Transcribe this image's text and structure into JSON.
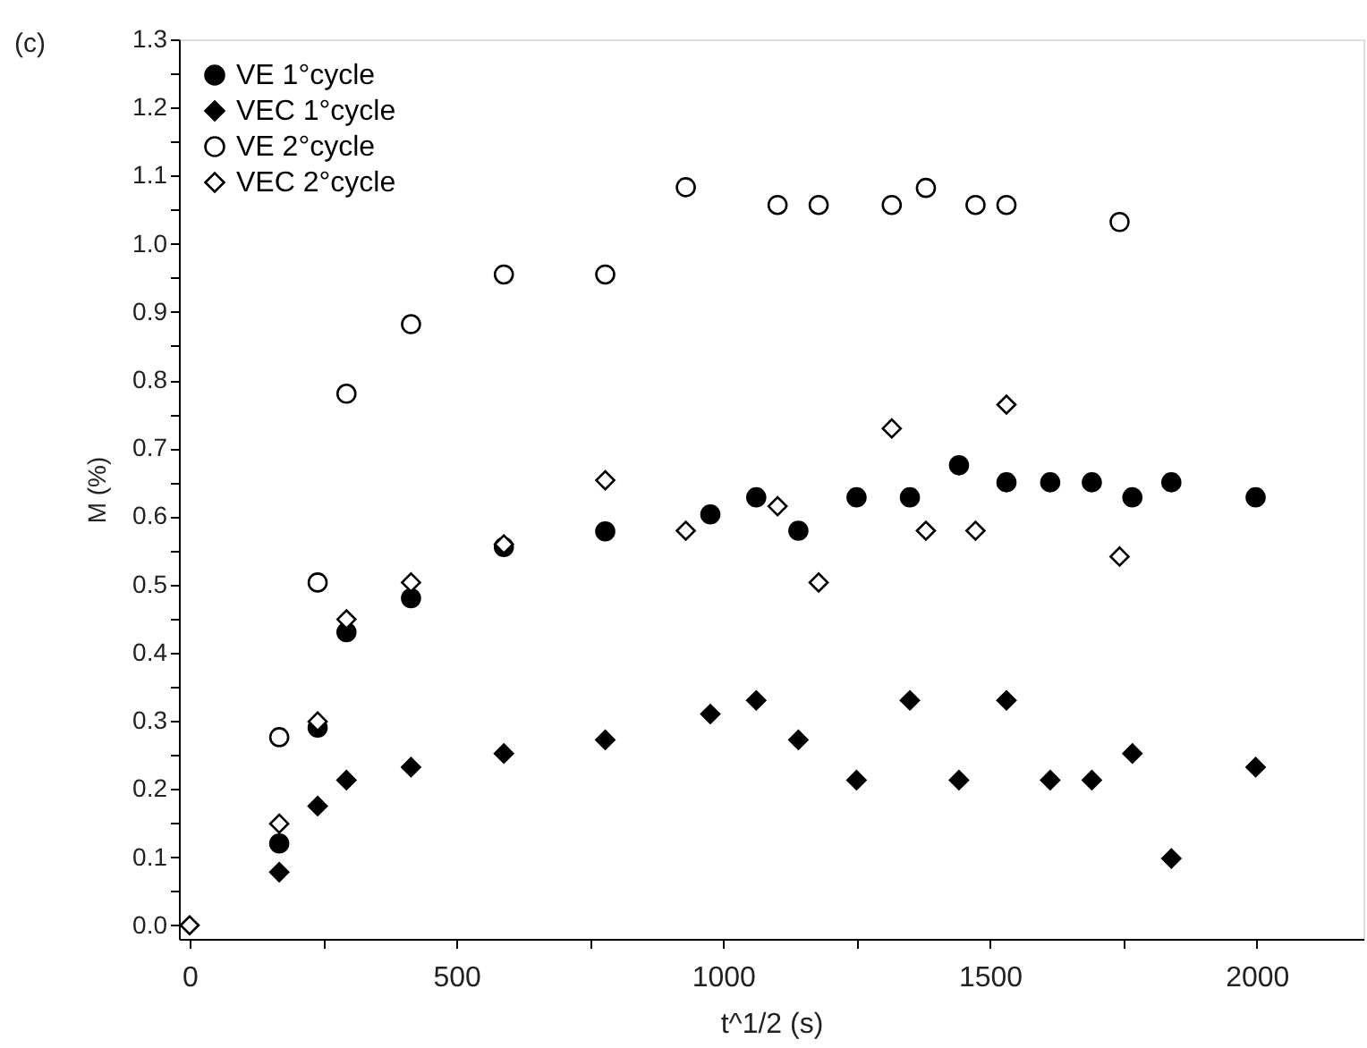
{
  "chart_data": {
    "type": "scatter",
    "xlabel": "t^1/2 (s)",
    "ylabel": "M (%)",
    "annotations": [
      "(c)"
    ],
    "xlim": [
      -20,
      2200
    ],
    "ylim": [
      -0.02,
      1.3
    ],
    "xticks": [
      0,
      {
        "value": 250,
        "label": null
      },
      500,
      {
        "value": 750,
        "label": null
      },
      1000,
      {
        "value": 1250,
        "label": null
      },
      1500,
      {
        "value": 1750,
        "label": null
      },
      2000
    ],
    "yticks": [
      {
        "value": 0,
        "label": "0.0"
      },
      {
        "value": 0.05,
        "label": null
      },
      0.1,
      {
        "value": 0.15,
        "label": null
      },
      0.2,
      {
        "value": 0.25,
        "label": null
      },
      0.3,
      {
        "value": 0.35,
        "label": null
      },
      0.4,
      {
        "value": 0.45,
        "label": null
      },
      0.5,
      {
        "value": 0.55,
        "label": null
      },
      0.6,
      {
        "value": 0.65,
        "label": null
      },
      0.7,
      {
        "value": 0.75,
        "label": null
      },
      0.8,
      {
        "value": 0.85,
        "label": null
      },
      0.9,
      {
        "value": 0.95,
        "label": null
      },
      {
        "value": 1,
        "label": "1.0"
      },
      {
        "value": 1.05,
        "label": null
      },
      1.1,
      {
        "value": 1.15,
        "label": null
      },
      1.2,
      {
        "value": 1.25,
        "label": null
      },
      1.3
    ],
    "grid": false,
    "legend": "top left",
    "series": [
      {
        "name": "VE 1°cycle",
        "color": "#000000",
        "marker": "circle",
        "x": [
          168,
          240,
          294,
          415,
          589,
          779,
          976,
          1062,
          1141,
          1250,
          1350,
          1442,
          1531,
          1613,
          1691,
          1767,
          1840,
          1998
        ],
        "values": [
          0.12,
          0.29,
          0.43,
          0.48,
          0.555,
          0.578,
          0.603,
          0.628,
          0.579,
          0.628,
          0.628,
          0.675,
          0.65,
          0.65,
          0.65,
          0.628,
          0.65,
          0.628
        ]
      },
      {
        "name": "VEC 1°cycle",
        "color": "#000000",
        "marker": "diamond",
        "x": [
          168,
          240,
          294,
          415,
          589,
          779,
          976,
          1062,
          1141,
          1250,
          1350,
          1442,
          1531,
          1613,
          1691,
          1767,
          1840,
          1998
        ],
        "values": [
          0.078,
          0.175,
          0.213,
          0.232,
          0.252,
          0.272,
          0.31,
          0.33,
          0.272,
          0.213,
          0.33,
          0.213,
          0.33,
          0.213,
          0.213,
          0.252,
          0.098,
          0.232
        ]
      },
      {
        "name": "VE 2°cycle",
        "color": "#000000",
        "marker": "circle-open",
        "x": [
          168,
          240,
          294,
          415,
          589,
          779,
          930,
          1102,
          1179,
          1316,
          1380,
          1473,
          1531,
          1743
        ],
        "values": [
          0.276,
          0.503,
          0.78,
          0.882,
          0.955,
          0.955,
          1.083,
          1.057,
          1.057,
          1.057,
          1.082,
          1.057,
          1.057,
          1.032
        ]
      },
      {
        "name": "VEC 2°cycle",
        "color": "#000000",
        "marker": "diamond-open",
        "x": [
          0,
          168,
          240,
          294,
          415,
          589,
          779,
          930,
          1102,
          1179,
          1316,
          1380,
          1473,
          1531,
          1743
        ],
        "values": [
          0,
          0.149,
          0.299,
          0.449,
          0.503,
          0.559,
          0.653,
          0.579,
          0.615,
          0.503,
          0.729,
          0.579,
          0.579,
          0.764,
          0.541
        ]
      }
    ]
  }
}
